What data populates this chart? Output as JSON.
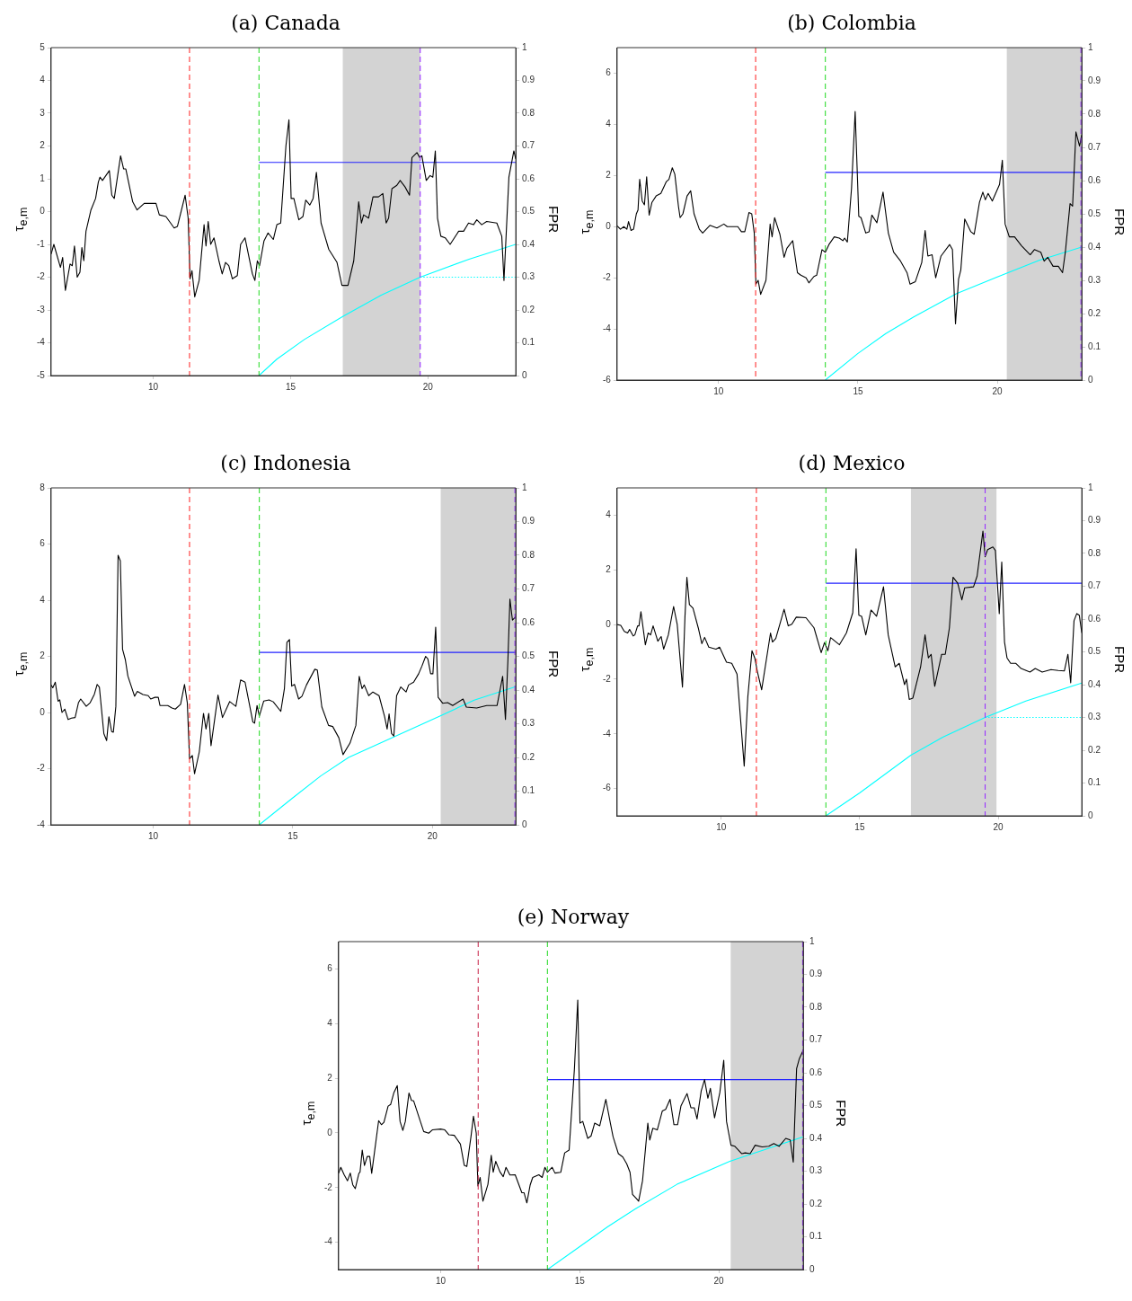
{
  "chart_data": [
    {
      "type": "line",
      "title": "(a) Canada",
      "ylabel": "τ$_{e,m}$",
      "y2label": "FPR",
      "grid": false,
      "xlim": [
        6.28,
        23.2
      ],
      "xticks": [
        10,
        15,
        20
      ],
      "ylim": [
        -5,
        5
      ],
      "yticks": [
        -5,
        -4,
        -3,
        -2,
        -1,
        0,
        1,
        2,
        3,
        4,
        5
      ],
      "y2lim": [
        0,
        1
      ],
      "y2ticks": [
        0,
        0.1,
        0.2,
        0.3,
        0.4,
        0.5,
        0.6,
        0.7,
        0.8,
        0.9,
        1
      ],
      "series": [
        {
          "color": "#000000",
          "x": [
            6.28,
            6.38,
            6.62,
            6.7,
            6.8,
            6.97,
            7.05,
            7.13,
            7.23,
            7.33,
            7.4,
            7.47,
            7.55,
            7.73,
            7.9,
            8.0,
            8.06,
            8.15,
            8.4,
            8.49,
            8.58,
            8.81,
            8.92,
            9.0,
            9.25,
            9.41,
            9.67,
            10.1,
            10.22,
            10.46,
            10.76,
            10.88,
            11.16,
            11.27,
            11.34,
            11.41,
            11.51,
            11.67,
            11.85,
            11.92,
            12.0,
            12.09,
            12.21,
            12.39,
            12.51,
            12.63,
            12.75,
            12.88,
            13.06,
            13.18,
            13.34,
            13.61,
            13.7,
            13.79,
            13.87,
            14.03,
            14.18,
            14.37,
            14.5,
            14.64,
            14.83,
            14.94,
            15.02,
            15.12,
            15.3,
            15.45,
            15.55,
            15.7,
            15.82,
            15.94,
            16.11,
            16.39,
            16.69,
            16.87,
            17.09,
            17.3,
            17.48,
            17.58,
            17.66,
            17.84,
            18.0,
            18.2,
            18.36,
            18.48,
            18.57,
            18.69,
            18.87,
            18.99,
            19.17,
            19.33,
            19.42,
            19.6,
            19.7,
            19.78,
            19.94,
            20.08,
            20.18,
            20.27,
            20.35,
            20.47,
            20.63,
            20.81,
            21.12,
            21.3,
            21.48,
            21.66,
            21.78,
            21.96,
            22.14,
            22.51,
            22.69,
            22.77,
            22.95,
            23.13,
            23.2
          ],
          "values": [
            -1.3,
            -1.0,
            -1.7,
            -1.4,
            -2.4,
            -1.6,
            -1.65,
            -1.05,
            -2.0,
            -1.85,
            -1.1,
            -1.5,
            -0.6,
            0.05,
            0.4,
            0.9,
            1.05,
            0.95,
            1.25,
            0.5,
            0.4,
            1.7,
            1.3,
            1.3,
            0.3,
            0.05,
            0.25,
            0.25,
            -0.1,
            -0.15,
            -0.5,
            -0.45,
            0.5,
            -0.2,
            -2.05,
            -1.8,
            -2.6,
            -2.1,
            -0.4,
            -1.05,
            -0.3,
            -1.0,
            -0.8,
            -1.5,
            -1.9,
            -1.55,
            -1.65,
            -2.05,
            -1.95,
            -1.0,
            -0.8,
            -1.9,
            -2.1,
            -1.5,
            -1.65,
            -0.9,
            -0.65,
            -0.85,
            -0.4,
            -0.35,
            2.0,
            2.8,
            0.4,
            0.4,
            -0.25,
            -0.15,
            0.35,
            0.2,
            0.4,
            1.2,
            -0.35,
            -1.15,
            -1.55,
            -2.25,
            -2.25,
            -1.5,
            0.3,
            -0.35,
            -0.1,
            -0.2,
            0.45,
            0.45,
            0.55,
            -0.35,
            -0.2,
            0.7,
            0.8,
            0.95,
            0.75,
            0.5,
            1.65,
            1.8,
            1.65,
            1.7,
            0.95,
            1.1,
            1.05,
            1.85,
            -0.2,
            -0.75,
            -0.8,
            -1.0,
            -0.6,
            -0.6,
            -0.35,
            -0.4,
            -0.25,
            -0.4,
            -0.3,
            -0.35,
            -0.75,
            -2.1,
            1.05,
            1.85,
            1.6
          ]
        },
        {
          "color": "#2222ff",
          "x": [
            13.85,
            23.2
          ],
          "values": [
            1.5,
            1.5
          ]
        },
        {
          "color": "#00ffff",
          "axis": "y2",
          "x": [
            13.85,
            14.5,
            15.5,
            16.9,
            18.3,
            19.72,
            21.5,
            23.2
          ],
          "values": [
            0,
            0.05,
            0.11,
            0.18,
            0.245,
            0.3,
            0.355,
            0.4
          ]
        },
        {
          "color": "#00ffff",
          "axis": "y2",
          "line_style": "dotted",
          "x": [
            19.72,
            23.2
          ],
          "values": [
            0.3,
            0.3
          ]
        }
      ],
      "ref_lines": [
        {
          "axis": "x",
          "value": 11.32,
          "color": "#ff3333",
          "line_style": "dashed"
        },
        {
          "axis": "x",
          "value": 13.85,
          "color": "#33dd33",
          "line_style": "dashed"
        },
        {
          "axis": "x",
          "value": 19.72,
          "color": "#9933ff",
          "line_style": "dashed"
        }
      ],
      "bands": [
        {
          "axis": "x",
          "from": 16.9,
          "to": 19.72,
          "color": "#d3d3d3"
        }
      ]
    },
    {
      "type": "line",
      "title": "(b) Colombia",
      "ylabel": "τ$_{e,m}$",
      "y2label": "FPR",
      "grid": false,
      "xlim": [
        6.36,
        23.03
      ],
      "xticks": [
        10,
        15,
        20
      ],
      "ylim": [
        -6,
        7
      ],
      "yticks": [
        -6,
        -4,
        -2,
        0,
        2,
        4,
        6
      ],
      "y2lim": [
        0,
        1
      ],
      "y2ticks": [
        0,
        0.1,
        0.2,
        0.3,
        0.4,
        0.5,
        0.6,
        0.7,
        0.8,
        0.9,
        1
      ],
      "series": [
        {
          "color": "#000000",
          "x": [
            6.36,
            6.48,
            6.6,
            6.71,
            6.77,
            6.86,
            6.95,
            7.05,
            7.11,
            7.17,
            7.26,
            7.34,
            7.42,
            7.51,
            7.61,
            7.76,
            7.93,
            8.12,
            8.22,
            8.34,
            8.43,
            8.56,
            8.62,
            8.72,
            8.87,
            9.0,
            9.12,
            9.31,
            9.43,
            9.69,
            9.94,
            10.19,
            10.31,
            10.69,
            10.82,
            10.94,
            11.09,
            11.19,
            11.28,
            11.34,
            11.42,
            11.51,
            11.7,
            11.85,
            11.92,
            12.01,
            12.2,
            12.35,
            12.45,
            12.66,
            12.83,
            12.95,
            13.14,
            13.24,
            13.42,
            13.52,
            13.71,
            13.83,
            13.96,
            14.15,
            14.33,
            14.46,
            14.52,
            14.62,
            14.77,
            14.9,
            15.03,
            15.11,
            15.28,
            15.4,
            15.5,
            15.68,
            15.9,
            16.09,
            16.28,
            16.53,
            16.76,
            16.87,
            17.06,
            17.29,
            17.41,
            17.51,
            17.66,
            17.79,
            17.98,
            18.29,
            18.39,
            18.5,
            18.61,
            18.69,
            18.83,
            19.05,
            19.17,
            19.36,
            19.48,
            19.57,
            19.67,
            19.82,
            20.08,
            20.18,
            20.28,
            20.43,
            20.62,
            20.87,
            21.18,
            21.33,
            21.56,
            21.68,
            21.81,
            22.0,
            22.19,
            22.34,
            22.44,
            22.61,
            22.7,
            22.82,
            22.95,
            23.03
          ],
          "values": [
            0.03,
            -0.1,
            0,
            -0.1,
            0.2,
            -0.15,
            -0.1,
            0.5,
            0.65,
            1.85,
            1.0,
            0.85,
            1.95,
            0.45,
            0.95,
            1.2,
            1.3,
            1.75,
            1.85,
            2.3,
            2.05,
            0.8,
            0.35,
            0.5,
            1.2,
            1.4,
            0.5,
            -0.1,
            -0.25,
            0.05,
            -0.05,
            0.1,
            0,
            0,
            -0.2,
            -0.2,
            0.55,
            0.5,
            -0.25,
            -2.25,
            -2.1,
            -2.65,
            -2.1,
            0.1,
            -0.4,
            0.35,
            -0.3,
            -1.2,
            -0.85,
            -0.55,
            -1.8,
            -1.9,
            -2.0,
            -2.2,
            -1.95,
            -1.9,
            -0.9,
            -1.0,
            -0.7,
            -0.4,
            -0.45,
            -0.55,
            -0.45,
            -0.6,
            1.5,
            4.5,
            0.4,
            0.35,
            -0.25,
            -0.2,
            0.45,
            0.15,
            1.35,
            -0.25,
            -1.0,
            -1.35,
            -1.8,
            -2.25,
            -2.15,
            -1.4,
            -0.15,
            -1.15,
            -1.1,
            -2.0,
            -1.15,
            -0.7,
            -0.9,
            -3.8,
            -2.05,
            -1.7,
            0.3,
            -0.2,
            -0.3,
            0.95,
            1.35,
            1.05,
            1.3,
            1.0,
            1.65,
            2.6,
            0.1,
            -0.4,
            -0.4,
            -0.75,
            -1.1,
            -0.9,
            -1.0,
            -1.35,
            -1.2,
            -1.55,
            -1.55,
            -1.8,
            -1.0,
            0.9,
            0.8,
            3.7,
            3.15,
            3.6
          ]
        },
        {
          "color": "#2222ff",
          "x": [
            13.83,
            23.03
          ],
          "values": [
            2.12,
            2.12
          ]
        },
        {
          "color": "#00ffff",
          "axis": "y2",
          "x": [
            13.83,
            15,
            16,
            17,
            18.54,
            20,
            21.5,
            23.03
          ],
          "values": [
            0,
            0.08,
            0.14,
            0.19,
            0.26,
            0.31,
            0.36,
            0.4
          ]
        }
      ],
      "ref_lines": [
        {
          "axis": "x",
          "value": 11.33,
          "color": "#ff3333",
          "line_style": "dashed"
        },
        {
          "axis": "x",
          "value": 13.83,
          "color": "#33dd33",
          "line_style": "dashed"
        },
        {
          "axis": "x",
          "value": 23.0,
          "color": "#9933ff",
          "line_style": "dashed"
        }
      ],
      "bands": [
        {
          "axis": "x",
          "from": 20.34,
          "to": 23.03,
          "color": "#d3d3d3"
        }
      ]
    },
    {
      "type": "line",
      "title": "(c) Indonesia",
      "ylabel": "τ$_{e,m}$",
      "y2label": "FPR",
      "grid": false,
      "xlim": [
        6.34,
        22.99
      ],
      "xticks": [
        10,
        15,
        20
      ],
      "ylim": [
        -4,
        8
      ],
      "yticks": [
        -4,
        -2,
        0,
        2,
        4,
        6,
        8
      ],
      "y2lim": [
        0,
        1
      ],
      "y2ticks": [
        0,
        0.1,
        0.2,
        0.3,
        0.4,
        0.5,
        0.6,
        0.7,
        0.8,
        0.9,
        1
      ],
      "series": [
        {
          "color": "#000000",
          "x": [
            6.34,
            6.4,
            6.49,
            6.59,
            6.65,
            6.73,
            6.83,
            6.95,
            7.07,
            7.2,
            7.32,
            7.4,
            7.6,
            7.74,
            7.89,
            7.99,
            8.07,
            8.23,
            8.33,
            8.41,
            8.51,
            8.57,
            8.66,
            8.74,
            8.82,
            8.9,
            9.0,
            9.09,
            9.33,
            9.43,
            9.63,
            9.82,
            9.91,
            10.06,
            10.18,
            10.24,
            10.52,
            10.67,
            10.79,
            10.98,
            11.12,
            11.22,
            11.3,
            11.4,
            11.48,
            11.65,
            11.8,
            11.89,
            11.99,
            12.07,
            12.32,
            12.48,
            12.74,
            12.96,
            13.13,
            13.29,
            13.57,
            13.63,
            13.72,
            13.8,
            13.96,
            14.15,
            14.3,
            14.57,
            14.7,
            14.79,
            14.88,
            14.96,
            15.06,
            15.21,
            15.33,
            15.49,
            15.79,
            15.88,
            16.04,
            16.28,
            16.43,
            16.65,
            16.8,
            17.05,
            17.26,
            17.38,
            17.48,
            17.56,
            17.72,
            17.87,
            18.09,
            18.29,
            18.38,
            18.45,
            18.54,
            18.62,
            18.72,
            18.87,
            19.06,
            19.15,
            19.33,
            19.51,
            19.63,
            19.76,
            19.84,
            19.94,
            20.02,
            20.12,
            20.21,
            20.37,
            20.55,
            20.73,
            21.1,
            21.22,
            21.59,
            21.95,
            22.32,
            22.52,
            22.62,
            22.71,
            22.78,
            22.87,
            22.99
          ],
          "values": [
            0.98,
            0.88,
            1.08,
            0.4,
            0.45,
            0,
            0.12,
            -0.25,
            -0.2,
            -0.18,
            0.35,
            0.48,
            0.22,
            0.35,
            0.65,
            1.0,
            0.9,
            -0.75,
            -1.0,
            -0.15,
            -0.68,
            -0.7,
            0.22,
            5.6,
            5.4,
            2.25,
            1.88,
            1.3,
            0.58,
            0.75,
            0.64,
            0.6,
            0.48,
            0.54,
            0.54,
            0.25,
            0.25,
            0.16,
            0.12,
            0.29,
            1.0,
            0.35,
            -1.65,
            -1.53,
            -2.18,
            -1.4,
            -0.03,
            -0.59,
            -0.03,
            -1.18,
            0.62,
            -0.18,
            0.39,
            0.22,
            1.16,
            1.08,
            -0.34,
            -0.38,
            0.25,
            -0.13,
            0.41,
            0.45,
            0.38,
            0.04,
            0.85,
            2.5,
            2.6,
            0.94,
            1.0,
            0.48,
            0.58,
            0.98,
            1.54,
            1.51,
            0.2,
            -0.46,
            -0.5,
            -0.9,
            -1.5,
            -1.09,
            -0.46,
            1.29,
            0.85,
            0.98,
            0.6,
            0.73,
            0.6,
            -0.15,
            -0.59,
            -0.05,
            -0.75,
            -0.84,
            0.6,
            0.91,
            0.73,
            0.98,
            1.08,
            1.38,
            1.66,
            2.0,
            1.91,
            1.38,
            1.38,
            3.04,
            0.54,
            0.33,
            0.35,
            0.25,
            0.48,
            0.19,
            0.16,
            0.25,
            0.25,
            1.29,
            -0.25,
            1.91,
            4.04,
            3.29,
            3.41
          ]
        },
        {
          "color": "#2222ff",
          "x": [
            13.8,
            22.99
          ],
          "values": [
            2.14,
            2.14
          ]
        },
        {
          "color": "#00ffff",
          "axis": "y2",
          "x": [
            13.8,
            15,
            16,
            17,
            18.6,
            20.2,
            21.5,
            22.99
          ],
          "values": [
            0,
            0.08,
            0.145,
            0.2,
            0.26,
            0.32,
            0.37,
            0.41
          ]
        }
      ],
      "ref_lines": [
        {
          "axis": "x",
          "value": 11.3,
          "color": "#ff3333",
          "line_style": "dashed"
        },
        {
          "axis": "x",
          "value": 13.8,
          "color": "#33dd33",
          "line_style": "dashed"
        },
        {
          "axis": "x",
          "value": 22.96,
          "color": "#9933ff",
          "line_style": "dashed"
        }
      ],
      "bands": [
        {
          "axis": "x",
          "from": 20.3,
          "to": 22.99,
          "color": "#d3d3d3"
        }
      ]
    },
    {
      "type": "line",
      "title": "(d) Mexico",
      "ylabel": "τ$_{e,m}$",
      "y2label": "FPR",
      "grid": false,
      "xlim": [
        6.24,
        23.02
      ],
      "xticks": [
        10,
        15,
        20
      ],
      "ylim": [
        -7,
        5
      ],
      "yticks": [
        -6,
        -4,
        -2,
        0,
        2,
        4
      ],
      "y2lim": [
        0,
        1
      ],
      "y2ticks": [
        0,
        0.1,
        0.2,
        0.3,
        0.4,
        0.5,
        0.6,
        0.7,
        0.8,
        0.9,
        1
      ],
      "series": [
        {
          "color": "#000000",
          "x": [
            6.24,
            6.37,
            6.5,
            6.62,
            6.69,
            6.82,
            6.88,
            6.98,
            7.03,
            7.1,
            7.26,
            7.36,
            7.45,
            7.54,
            7.71,
            7.83,
            7.92,
            8.09,
            8.28,
            8.41,
            8.6,
            8.69,
            8.76,
            8.85,
            8.98,
            9.17,
            9.3,
            9.4,
            9.55,
            9.81,
            9.94,
            10.19,
            10.38,
            10.57,
            10.83,
            10.96,
            11.11,
            11.21,
            11.31,
            11.46,
            11.78,
            11.85,
            11.97,
            12.27,
            12.42,
            12.55,
            12.71,
            13.06,
            13.35,
            13.61,
            13.73,
            13.85,
            13.95,
            14.27,
            14.52,
            14.75,
            14.87,
            14.97,
            15.07,
            15.22,
            15.41,
            15.61,
            15.86,
            16.03,
            16.28,
            16.43,
            16.62,
            16.69,
            16.79,
            16.92,
            17.2,
            17.36,
            17.48,
            17.58,
            17.71,
            17.96,
            18.09,
            18.24,
            18.37,
            18.54,
            18.69,
            18.79,
            19.11,
            19.24,
            19.45,
            19.53,
            19.62,
            19.81,
            19.9,
            20.04,
            20.13,
            20.23,
            20.32,
            20.45,
            20.64,
            20.83,
            21.15,
            21.34,
            21.59,
            21.91,
            22.17,
            22.39,
            22.52,
            22.62,
            22.74,
            22.84,
            22.93,
            23.02
          ],
          "values": [
            0,
            -0.03,
            -0.25,
            -0.31,
            -0.18,
            -0.42,
            -0.38,
            -0.05,
            -0.05,
            0.47,
            -0.74,
            -0.31,
            -0.38,
            -0.05,
            -0.61,
            -0.44,
            -0.9,
            -0.38,
            0.66,
            0.01,
            -2.29,
            0.27,
            1.73,
            0.73,
            0.6,
            -0.12,
            -0.7,
            -0.47,
            -0.83,
            -0.9,
            -0.83,
            -1.38,
            -1.42,
            -1.81,
            -5.18,
            -2.65,
            -0.96,
            -1.22,
            -1.74,
            -2.39,
            -0.31,
            -0.64,
            -0.51,
            0.56,
            -0.05,
            0.01,
            0.27,
            0.25,
            -0.12,
            -1.03,
            -0.66,
            -0.96,
            -0.48,
            -0.74,
            -0.31,
            0.43,
            2.77,
            0.34,
            0.3,
            -0.38,
            0.53,
            0.3,
            1.38,
            -0.38,
            -1.55,
            -1.42,
            -2.2,
            -2.0,
            -2.74,
            -2.69,
            -1.55,
            -0.38,
            -1.22,
            -1.09,
            -2.26,
            -1.09,
            -1.09,
            -0.12,
            1.73,
            1.51,
            0.9,
            1.34,
            1.38,
            1.77,
            3.42,
            2.48,
            2.74,
            2.84,
            2.71,
            0.4,
            2.29,
            -0.64,
            -1.22,
            -1.42,
            -1.42,
            -1.61,
            -1.74,
            -1.61,
            -1.74,
            -1.65,
            -1.68,
            -1.7,
            -1.09,
            -2.13,
            0.14,
            0.4,
            0.34,
            -0.31
          ]
        },
        {
          "color": "#2222ff",
          "x": [
            13.78,
            23.02
          ],
          "values": [
            1.51,
            1.51
          ]
        },
        {
          "color": "#00ffff",
          "axis": "y2",
          "x": [
            13.78,
            15,
            16.85,
            18,
            19.53,
            21,
            23.02
          ],
          "values": [
            0,
            0.07,
            0.185,
            0.24,
            0.3,
            0.35,
            0.405
          ]
        },
        {
          "color": "#00ffff",
          "axis": "y2",
          "line_style": "dotted",
          "x": [
            19.53,
            23.02
          ],
          "values": [
            0.3,
            0.3
          ]
        }
      ],
      "ref_lines": [
        {
          "axis": "x",
          "value": 11.27,
          "color": "#ff3333",
          "line_style": "dashed"
        },
        {
          "axis": "x",
          "value": 13.78,
          "color": "#33dd33",
          "line_style": "dashed"
        },
        {
          "axis": "x",
          "value": 19.53,
          "color": "#9933ff",
          "line_style": "dashed"
        }
      ],
      "bands": [
        {
          "axis": "x",
          "from": 16.85,
          "to": 19.94,
          "color": "#d3d3d3"
        }
      ]
    },
    {
      "type": "line",
      "title": "(e) Norway",
      "ylabel": "τ$_{e,m}$",
      "y2label": "FPR",
      "grid": false,
      "xlim": [
        6.33,
        23.04
      ],
      "xticks": [
        10,
        15,
        20
      ],
      "ylim": [
        -5,
        7
      ],
      "yticks": [
        -4,
        -2,
        0,
        2,
        4,
        6
      ],
      "y2lim": [
        0,
        1
      ],
      "y2ticks": [
        0,
        0.1,
        0.2,
        0.3,
        0.4,
        0.5,
        0.6,
        0.7,
        0.8,
        0.9,
        1
      ],
      "series": [
        {
          "color": "#000000",
          "x": [
            6.33,
            6.41,
            6.53,
            6.65,
            6.75,
            6.84,
            6.93,
            7.06,
            7.1,
            7.18,
            7.26,
            7.36,
            7.45,
            7.52,
            7.63,
            7.77,
            7.87,
            7.96,
            8.11,
            8.2,
            8.32,
            8.44,
            8.54,
            8.64,
            8.73,
            8.86,
            8.95,
            9.03,
            9.27,
            9.39,
            9.57,
            9.7,
            10.0,
            10.15,
            10.3,
            10.49,
            10.71,
            10.85,
            10.94,
            11.09,
            11.18,
            11.28,
            11.34,
            11.42,
            11.52,
            11.7,
            11.82,
            11.89,
            11.98,
            12.13,
            12.25,
            12.35,
            12.49,
            12.68,
            12.92,
            13.0,
            13.1,
            13.22,
            13.31,
            13.53,
            13.65,
            13.75,
            13.84,
            14.01,
            14.11,
            14.32,
            14.46,
            14.62,
            14.81,
            14.93,
            15.01,
            15.11,
            15.29,
            15.41,
            15.54,
            15.72,
            15.94,
            16.11,
            16.2,
            16.39,
            16.55,
            16.69,
            16.81,
            16.9,
            17.02,
            17.12,
            17.26,
            17.45,
            17.52,
            17.63,
            17.79,
            17.97,
            18.09,
            18.25,
            18.39,
            18.52,
            18.64,
            18.86,
            19.0,
            19.12,
            19.22,
            19.37,
            19.49,
            19.61,
            19.7,
            19.85,
            20.04,
            20.18,
            20.28,
            20.44,
            20.58,
            20.83,
            20.95,
            21.13,
            21.31,
            21.56,
            21.8,
            21.98,
            22.17,
            22.41,
            22.57,
            22.68,
            22.8,
            22.9,
            23.04
          ],
          "values": [
            -1.48,
            -1.26,
            -1.53,
            -1.75,
            -1.47,
            -1.9,
            -2.04,
            -1.48,
            -1.44,
            -0.63,
            -1.19,
            -0.86,
            -0.86,
            -1.48,
            -0.63,
            0.45,
            0.3,
            0.39,
            0.98,
            1.04,
            1.48,
            1.73,
            0.42,
            0.09,
            0.42,
            1.46,
            1.19,
            1.17,
            0.42,
            0.05,
            -0.01,
            0.11,
            0.14,
            0.11,
            -0.07,
            -0.09,
            -0.41,
            -1.19,
            -1.23,
            -0.14,
            0.61,
            -0.01,
            -1.94,
            -1.63,
            -2.5,
            -1.88,
            -0.82,
            -1.44,
            -1.04,
            -1.42,
            -1.6,
            -1.26,
            -1.54,
            -1.53,
            -2.19,
            -2.19,
            -2.56,
            -1.9,
            -1.63,
            -1.53,
            -1.63,
            -1.26,
            -1.44,
            -1.26,
            -1.47,
            -1.44,
            -0.73,
            -0.63,
            2.35,
            4.86,
            0.36,
            0.42,
            -0.2,
            -0.11,
            0.36,
            0.26,
            1.23,
            0.32,
            -0.14,
            -0.76,
            -0.88,
            -1.13,
            -1.44,
            -2.25,
            -2.38,
            -2.5,
            -1.75,
            0.36,
            -0.26,
            0.17,
            0.11,
            0.8,
            0.86,
            1.23,
            0.3,
            0.3,
            0.98,
            1.44,
            0.92,
            0.92,
            0.51,
            1.54,
            1.95,
            1.27,
            1.63,
            0.55,
            1.48,
            2.66,
            0.42,
            -0.45,
            -0.49,
            -0.76,
            -0.73,
            -0.76,
            -0.45,
            -0.51,
            -0.49,
            -0.39,
            -0.49,
            -0.2,
            -0.26,
            -1.07,
            2.35,
            2.72,
            3.03
          ]
        },
        {
          "color": "#2222ff",
          "x": [
            13.84,
            23.04
          ],
          "values": [
            1.95,
            1.95
          ]
        },
        {
          "color": "#00ffff",
          "axis": "y2",
          "x": [
            13.84,
            15,
            16,
            17,
            18.5,
            20.4,
            21.8,
            23.02
          ],
          "values": [
            0,
            0.07,
            0.13,
            0.185,
            0.26,
            0.33,
            0.37,
            0.404
          ]
        }
      ],
      "ref_lines": [
        {
          "axis": "x",
          "value": 11.35,
          "color": "#cc3355",
          "line_style": "dashed"
        },
        {
          "axis": "x",
          "value": 13.84,
          "color": "#33dd33",
          "line_style": "dashed"
        },
        {
          "axis": "x",
          "value": 23.02,
          "color": "#9933ff",
          "line_style": "dashed"
        }
      ],
      "bands": [
        {
          "axis": "x",
          "from": 20.43,
          "to": 23.04,
          "color": "#d3d3d3"
        }
      ]
    }
  ]
}
